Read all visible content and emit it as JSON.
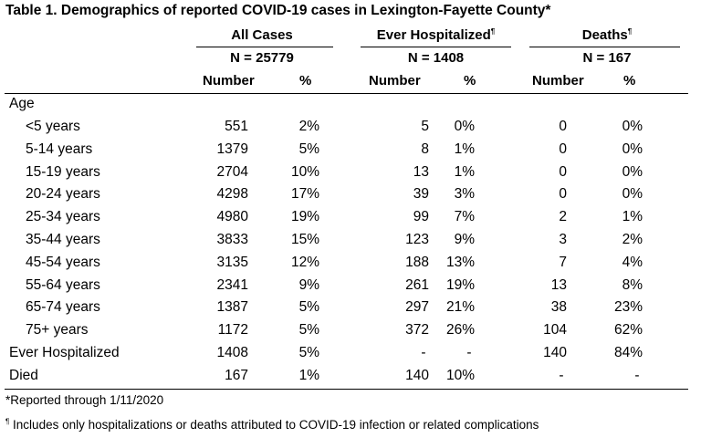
{
  "title": "Table 1. Demographics of reported COVID-19 cases in Lexington-Fayette County*",
  "groups": [
    {
      "name": "All Cases",
      "mark": "",
      "n": "N = 25779"
    },
    {
      "name": "Ever Hospitalized",
      "mark": "¶",
      "n": "N = 1408"
    },
    {
      "name": "Deaths",
      "mark": "¶",
      "n": "N = 167"
    }
  ],
  "col_headers": {
    "number": "Number",
    "pct": "%"
  },
  "section": "Age",
  "rows": [
    {
      "label": "<5 years",
      "v": [
        "551",
        "2%",
        "5",
        "0%",
        "0",
        "0%"
      ]
    },
    {
      "label": "5-14 years",
      "v": [
        "1379",
        "5%",
        "8",
        "1%",
        "0",
        "0%"
      ]
    },
    {
      "label": "15-19 years",
      "v": [
        "2704",
        "10%",
        "13",
        "1%",
        "0",
        "0%"
      ]
    },
    {
      "label": "20-24 years",
      "v": [
        "4298",
        "17%",
        "39",
        "3%",
        "0",
        "0%"
      ]
    },
    {
      "label": "25-34 years",
      "v": [
        "4980",
        "19%",
        "99",
        "7%",
        "2",
        "1%"
      ]
    },
    {
      "label": "35-44 years",
      "v": [
        "3833",
        "15%",
        "123",
        "9%",
        "3",
        "2%"
      ]
    },
    {
      "label": "45-54 years",
      "v": [
        "3135",
        "12%",
        "188",
        "13%",
        "7",
        "4%"
      ]
    },
    {
      "label": "55-64 years",
      "v": [
        "2341",
        "9%",
        "261",
        "19%",
        "13",
        "8%"
      ]
    },
    {
      "label": "65-74 years",
      "v": [
        "1387",
        "5%",
        "297",
        "21%",
        "38",
        "23%"
      ]
    },
    {
      "label": "75+ years",
      "v": [
        "1172",
        "5%",
        "372",
        "26%",
        "104",
        "62%"
      ]
    },
    {
      "label": "Ever Hospitalized",
      "v": [
        "1408",
        "5%",
        "-",
        "-",
        "140",
        "84%"
      ],
      "top": true
    },
    {
      "label": "Died",
      "v": [
        "167",
        "1%",
        "140",
        "10%",
        "-",
        "-"
      ],
      "top": true
    }
  ],
  "footnotes": {
    "reported": "*Reported through 1/11/2020",
    "mark": "¶",
    "includes": " Includes only hospitalizations or deaths attributed to COVID-19 infection or related complications"
  }
}
